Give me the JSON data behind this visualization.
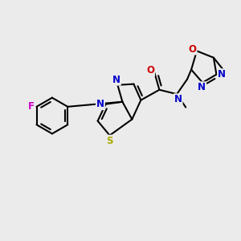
{
  "bg_color": "#ebebeb",
  "bond_color": "#000000",
  "bond_width": 1.5,
  "atom_colors": {
    "F": "#cc00cc",
    "N": "#0000cc",
    "O": "#cc0000",
    "S": "#aaaa00",
    "C": "#000000"
  },
  "font_size": 8.5,
  "font_size_small": 7.5
}
